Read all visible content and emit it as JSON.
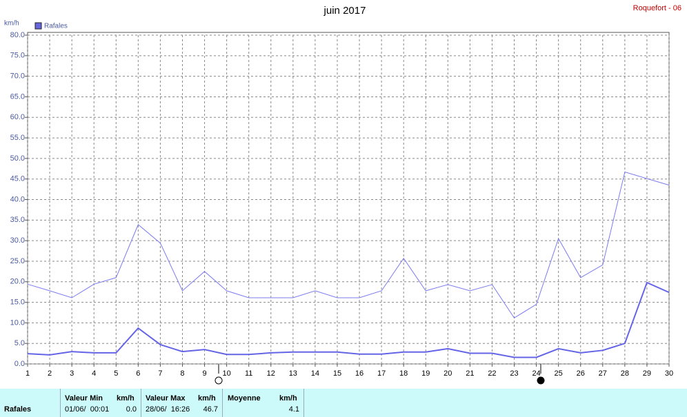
{
  "chart_data": {
    "type": "line",
    "title": "juin 2017",
    "station": "Roquefort - 06",
    "y_label": "km/h",
    "categories": [
      "1",
      "2",
      "3",
      "4",
      "5",
      "6",
      "7",
      "8",
      "9",
      "10",
      "11",
      "12",
      "13",
      "14",
      "15",
      "16",
      "17",
      "18",
      "19",
      "20",
      "21",
      "22",
      "23",
      "24",
      "25",
      "26",
      "27",
      "28",
      "29",
      "30"
    ],
    "series": [
      {
        "name": "Rafales",
        "color": "#7b7bef",
        "line_width": 1,
        "values": [
          19.4,
          17.8,
          16.1,
          19.4,
          21.0,
          33.9,
          29.4,
          17.8,
          22.5,
          17.8,
          16.1,
          16.1,
          16.1,
          17.8,
          16.1,
          16.1,
          17.8,
          25.7,
          17.8,
          19.3,
          17.8,
          19.3,
          11.2,
          14.5,
          30.5,
          21.0,
          24.1,
          46.7,
          45.1,
          43.5
        ]
      },
      {
        "color": "#6464e6",
        "line_width": 2,
        "values": [
          2.5,
          2.2,
          3.0,
          2.7,
          2.7,
          8.7,
          4.7,
          3.0,
          3.5,
          2.3,
          2.3,
          2.7,
          2.9,
          2.9,
          2.9,
          2.4,
          2.4,
          2.9,
          2.9,
          3.7,
          2.6,
          2.6,
          1.6,
          1.6,
          3.7,
          2.7,
          3.3,
          5.0,
          19.8,
          17.4
        ]
      }
    ],
    "ylim": [
      0,
      80
    ],
    "yticks": [
      {
        "value": 0,
        "label": "0.0"
      },
      {
        "value": 5,
        "label": "5.0"
      },
      {
        "value": 10,
        "label": "10.0"
      },
      {
        "value": 15,
        "label": "15.0"
      },
      {
        "value": 20,
        "label": "20.0"
      },
      {
        "value": 25,
        "label": "25.0"
      },
      {
        "value": 30,
        "label": "30.0"
      },
      {
        "value": 35,
        "label": "35.0"
      },
      {
        "value": 40,
        "label": "40.0"
      },
      {
        "value": 45,
        "label": "45.0"
      },
      {
        "value": 50,
        "label": "50.0"
      },
      {
        "value": 55,
        "label": "55.0"
      },
      {
        "value": 60,
        "label": "60.0"
      },
      {
        "value": 65,
        "label": "65.0"
      },
      {
        "value": 70,
        "label": "70.0"
      },
      {
        "value": 75,
        "label": "75.0"
      },
      {
        "value": 80,
        "label": "80.0"
      }
    ],
    "grid": true
  },
  "footer": {
    "label": "Rafales",
    "columns": [
      {
        "header": "Valeur Min",
        "unit": "km/h",
        "date": "01/06/  00:01",
        "value": "0.0"
      },
      {
        "header": "Valeur Max",
        "unit": "km/h",
        "date": "28/06/  16:26",
        "value": "46.7"
      },
      {
        "header": "Moyenne",
        "unit": "km/h",
        "value": "4.1"
      }
    ]
  }
}
